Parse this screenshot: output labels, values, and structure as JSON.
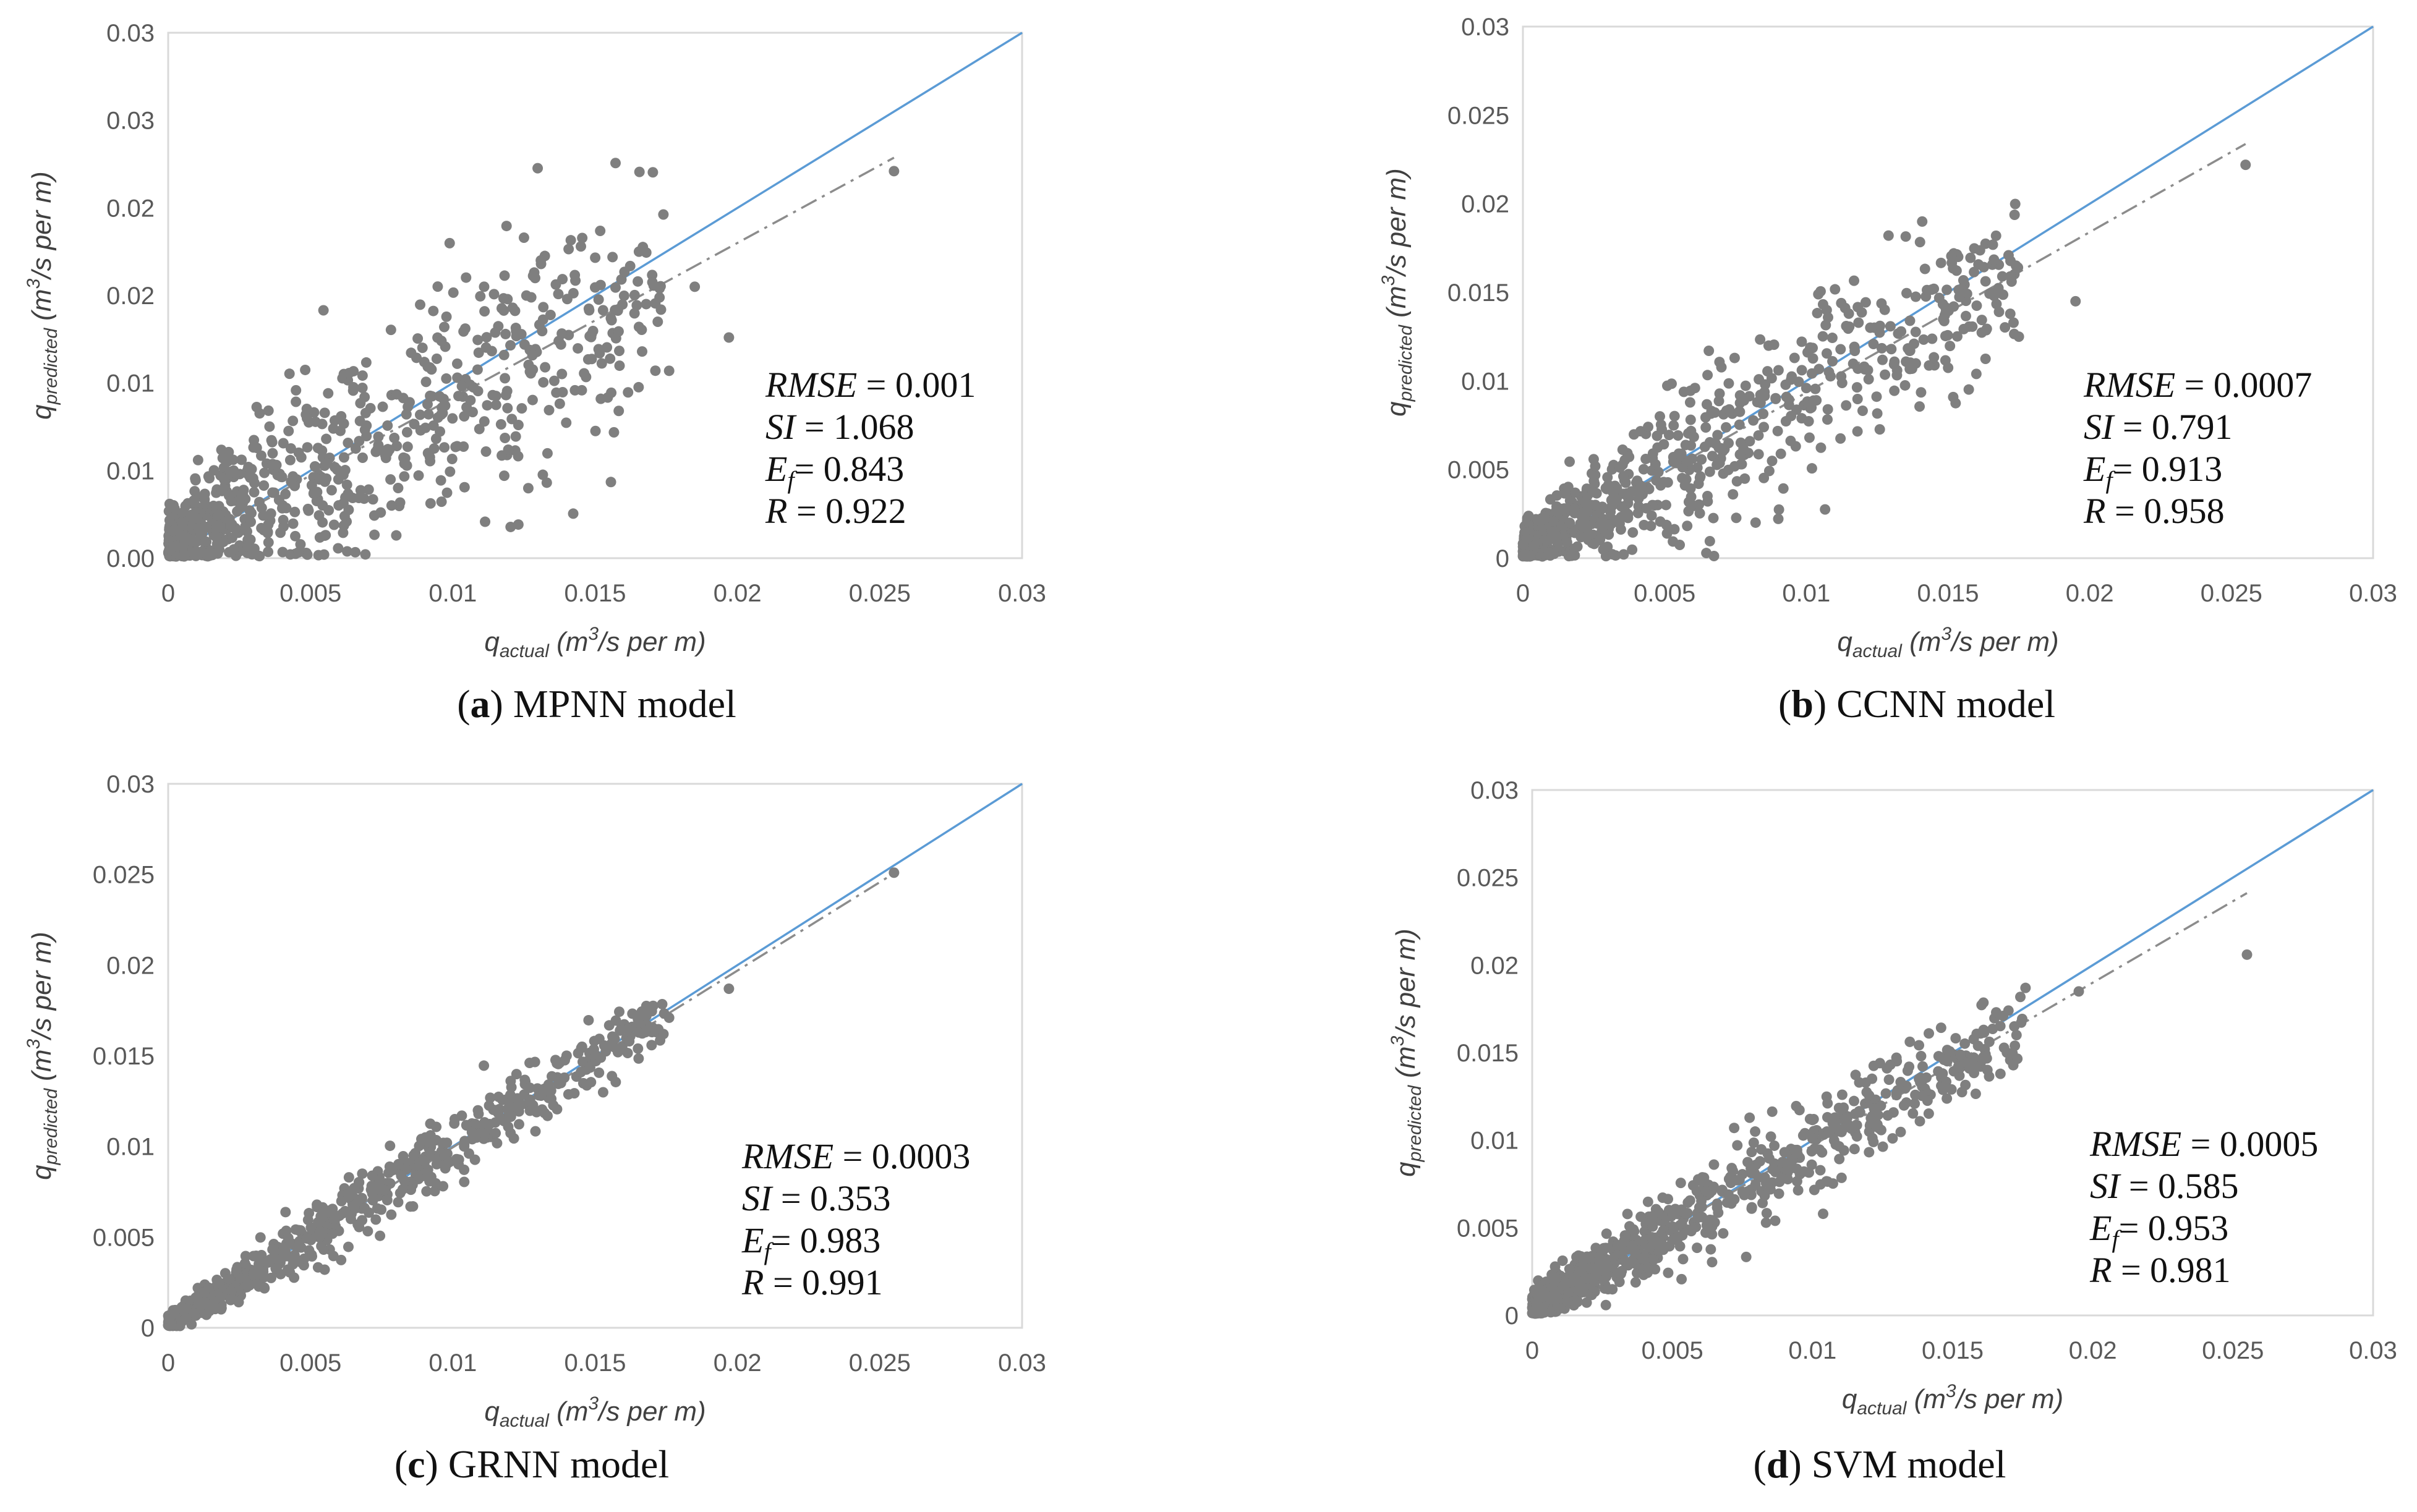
{
  "chart_data": [
    {
      "type": "scatter",
      "panel": "a",
      "caption_letter": "a",
      "caption_text": "MPNN model",
      "xlabel": "q",
      "xlabel_sub": "actual",
      "xlabel_unit": " (m",
      "xlabel_sup": "3",
      "xlabel_unit2": "/s per m)",
      "ylabel": "q",
      "ylabel_sub": "predicted",
      "ylabel_unit": " (m",
      "ylabel_sup": "3",
      "ylabel_unit2": "/s per m)",
      "xlim": [
        0,
        0.03
      ],
      "ylim": [
        0,
        0.03
      ],
      "xticks": [
        "0",
        "0.005",
        "0.01",
        "0.015",
        "0.02",
        "0.025",
        "0.03"
      ],
      "yticks": [
        "0.00",
        "0.01",
        "0.01",
        "0.02",
        "0.02",
        "0.03",
        "0.03"
      ],
      "stats": [
        {
          "name": "RMSE",
          "sub": "",
          "value": " = 0.001"
        },
        {
          "name": "SI",
          "sub": "",
          "value": " = 1.068"
        },
        {
          "name": "E",
          "sub": "f",
          "value": "= 0.843"
        },
        {
          "name": "R",
          "sub": "",
          "value": " = 0.922"
        }
      ],
      "trend": {
        "slope": 0.885,
        "intercept": 0.0003,
        "x_end": 0.0255
      },
      "spread": 0.0035,
      "series": [
        {
          "name": "data",
          "x": [
            0.0255,
            0.0197,
            0.0185,
            0.0176,
            0.0172,
            0.0165,
            0.0158,
            0.0152,
            0.0145,
            0.0138,
            0.0131,
            0.0125,
            0.0118,
            0.0111,
            0.0104,
            0.0097,
            0.009,
            0.0083,
            0.0076,
            0.0069,
            0.0062,
            0.0055
          ],
          "y": [
            0.0221,
            0.0126,
            0.0155,
            0.0107,
            0.0135,
            0.0158,
            0.0142,
            0.0091,
            0.0178,
            0.0122,
            0.0168,
            0.0183,
            0.0116,
            0.0155,
            0.0081,
            0.0132,
            0.0112,
            0.0054,
            0.0061,
            0.0092,
            0.0024,
            0.0083
          ]
        }
      ]
    },
    {
      "type": "scatter",
      "panel": "b",
      "caption_letter": "b",
      "caption_text": "CCNN model",
      "xlabel": "q",
      "xlabel_sub": "actual",
      "xlabel_unit": " (m",
      "xlabel_sup": "3",
      "xlabel_unit2": "/s per m)",
      "ylabel": "q",
      "ylabel_sub": "predicted",
      "ylabel_unit": " (m",
      "ylabel_sup": "3",
      "ylabel_unit2": "/s per m)",
      "xlim": [
        0,
        0.03
      ],
      "ylim": [
        0,
        0.03
      ],
      "xticks": [
        "0",
        "0.005",
        "0.01",
        "0.015",
        "0.02",
        "0.025",
        "0.03"
      ],
      "yticks": [
        "0",
        "0.005",
        "0.01",
        "0.015",
        "0.02",
        "0.025",
        "0.03"
      ],
      "stats": [
        {
          "name": "RMSE",
          "sub": "",
          "value": " = 0.0007"
        },
        {
          "name": "SI",
          "sub": "",
          "value": " = 0.791"
        },
        {
          "name": "E",
          "sub": "f",
          "value": "= 0.913"
        },
        {
          "name": "R",
          "sub": "",
          "value": " = 0.958"
        }
      ],
      "trend": {
        "slope": 0.905,
        "intercept": 0.0003,
        "x_end": 0.0255
      },
      "spread": 0.0024,
      "series": [
        {
          "name": "data",
          "x": [
            0.0255,
            0.0195,
            0.0175,
            0.0172,
            0.0168,
            0.016,
            0.0152,
            0.0145,
            0.0138,
            0.013,
            0.0122,
            0.0115,
            0.0108,
            0.01,
            0.0093,
            0.0085,
            0.0078,
            0.007,
            0.0062,
            0.0055
          ],
          "y": [
            0.0222,
            0.0145,
            0.0125,
            0.0159,
            0.0139,
            0.0104,
            0.0142,
            0.0152,
            0.0121,
            0.0118,
            0.0101,
            0.0138,
            0.0105,
            0.0096,
            0.0091,
            0.0074,
            0.0089,
            0.0062,
            0.0042,
            0.0059
          ]
        }
      ]
    },
    {
      "type": "scatter",
      "panel": "c",
      "caption_letter": "c",
      "caption_text": "GRNN model",
      "xlabel": "q",
      "xlabel_sub": "actual",
      "xlabel_unit": " (m",
      "xlabel_sup": "3",
      "xlabel_unit2": "/s per m)",
      "ylabel": "q",
      "ylabel_sub": "predicted",
      "ylabel_unit": " (m",
      "ylabel_sup": "3",
      "ylabel_unit2": "/s per m)",
      "xlim": [
        0,
        0.03
      ],
      "ylim": [
        0,
        0.03
      ],
      "xticks": [
        "0",
        "0.005",
        "0.01",
        "0.015",
        "0.02",
        "0.025",
        "0.03"
      ],
      "yticks": [
        "0",
        "0.005",
        "0.01",
        "0.015",
        "0.02",
        "0.025",
        "0.03"
      ],
      "stats": [
        {
          "name": "RMSE",
          "sub": "",
          "value": " = 0.0003"
        },
        {
          "name": "SI",
          "sub": "",
          "value": " = 0.353"
        },
        {
          "name": "E",
          "sub": "f",
          "value": "= 0.983"
        },
        {
          "name": "R",
          "sub": "",
          "value": " = 0.991"
        }
      ],
      "trend": {
        "slope": 0.975,
        "intercept": 0.0002,
        "x_end": 0.0255
      },
      "spread": 0.0009,
      "series": [
        {
          "name": "data",
          "x": [
            0.0255,
            0.0197,
            0.0176,
            0.0174,
            0.0168,
            0.0162,
            0.0158,
            0.0152,
            0.0145,
            0.0138,
            0.0131,
            0.0124,
            0.0118,
            0.0111,
            0.0104,
            0.0097,
            0.009,
            0.0083,
            0.0076,
            0.0069
          ],
          "y": [
            0.0251,
            0.0187,
            0.0171,
            0.0162,
            0.0172,
            0.0158,
            0.0152,
            0.0149,
            0.0141,
            0.0135,
            0.0128,
            0.0123,
            0.0114,
            0.0107,
            0.0101,
            0.0095,
            0.0092,
            0.0081,
            0.0076,
            0.0066
          ]
        }
      ]
    },
    {
      "type": "scatter",
      "panel": "d",
      "caption_letter": "d",
      "caption_text": "SVM model",
      "xlabel": "q",
      "xlabel_sub": "actual",
      "xlabel_unit": " (m",
      "xlabel_sup": "3",
      "xlabel_unit2": "/s per m)",
      "ylabel": "q",
      "ylabel_sub": "predicted",
      "ylabel_unit": " (m",
      "ylabel_sup": "3",
      "ylabel_unit2": "/s per m)",
      "xlim": [
        0,
        0.03
      ],
      "ylim": [
        0,
        0.03
      ],
      "xticks": [
        "0",
        "0.005",
        "0.01",
        "0.015",
        "0.02",
        "0.025",
        "0.03"
      ],
      "yticks": [
        "0",
        "0.005",
        "0.01",
        "0.015",
        "0.02",
        "0.025",
        "0.03"
      ],
      "stats": [
        {
          "name": "RMSE",
          "sub": "",
          "value": " = 0.0005"
        },
        {
          "name": "SI",
          "sub": "",
          "value": " = 0.585"
        },
        {
          "name": "E",
          "sub": "f",
          "value": "= 0.953"
        },
        {
          "name": "R",
          "sub": "",
          "value": " = 0.981"
        }
      ],
      "trend": {
        "slope": 0.93,
        "intercept": 0.0004,
        "x_end": 0.0255
      },
      "spread": 0.0014,
      "series": [
        {
          "name": "data",
          "x": [
            0.0255,
            0.0195,
            0.0176,
            0.0172,
            0.0168,
            0.016,
            0.0152,
            0.0145,
            0.0138,
            0.013,
            0.0122,
            0.0115,
            0.0108,
            0.01,
            0.0093,
            0.0085,
            0.0078,
            0.007,
            0.0062,
            0.0055
          ],
          "y": [
            0.0206,
            0.0185,
            0.0187,
            0.0165,
            0.0171,
            0.0161,
            0.0142,
            0.0148,
            0.0135,
            0.0127,
            0.0118,
            0.0095,
            0.0113,
            0.0101,
            0.0089,
            0.0072,
            0.0084,
            0.0069,
            0.0071,
            0.0058
          ]
        }
      ]
    }
  ]
}
